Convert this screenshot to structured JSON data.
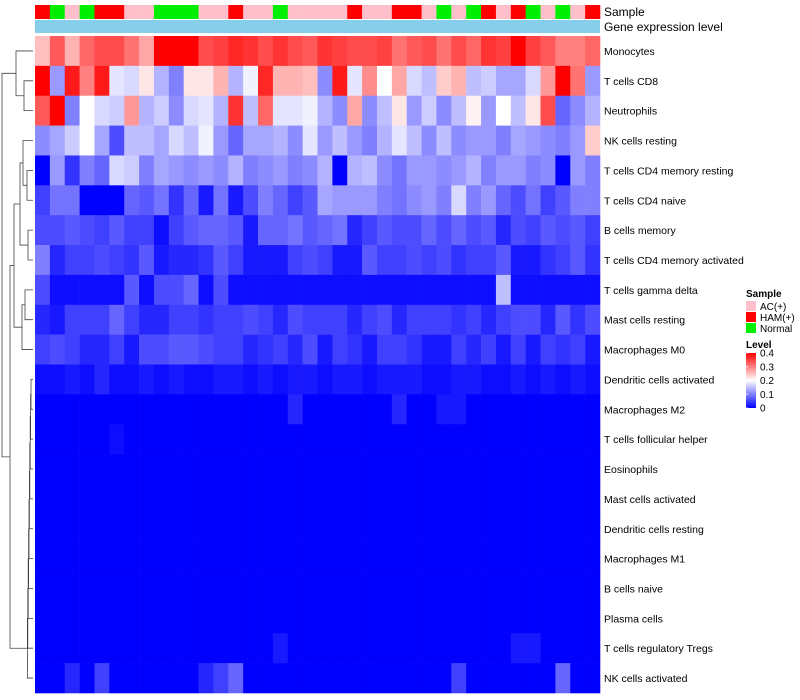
{
  "chart_data": {
    "type": "heatmap",
    "title": "",
    "xlabel": "",
    "ylabel": "",
    "column_annotation_labels": [
      "Sample",
      "Gene expression level"
    ],
    "column_samples": [
      "HAM(+)",
      "Normal",
      "AC(+)",
      "Normal",
      "HAM(+)",
      "HAM(+)",
      "AC(+)",
      "AC(+)",
      "Normal",
      "Normal",
      "Normal",
      "AC(+)",
      "AC(+)",
      "HAM(+)",
      "AC(+)",
      "AC(+)",
      "Normal",
      "AC(+)",
      "AC(+)",
      "AC(+)",
      "AC(+)",
      "HAM(+)",
      "AC(+)",
      "AC(+)",
      "HAM(+)",
      "HAM(+)",
      "AC(+)",
      "Normal",
      "AC(+)",
      "Normal",
      "HAM(+)",
      "AC(+)",
      "HAM(+)",
      "Normal",
      "AC(+)",
      "Normal",
      "AC(+)",
      "HAM(+)"
    ],
    "rows": [
      {
        "name": "Monocytes",
        "values": [
          0.25,
          0.33,
          0.26,
          0.32,
          0.34,
          0.34,
          0.31,
          0.27,
          0.4,
          0.4,
          0.4,
          0.34,
          0.35,
          0.37,
          0.36,
          0.34,
          0.36,
          0.34,
          0.33,
          0.36,
          0.35,
          0.34,
          0.34,
          0.35,
          0.31,
          0.33,
          0.34,
          0.31,
          0.34,
          0.32,
          0.36,
          0.35,
          0.4,
          0.35,
          0.33,
          0.3,
          0.3,
          0.32
        ]
      },
      {
        "name": "T cells CD8",
        "values": [
          0.4,
          0.12,
          0.38,
          0.3,
          0.38,
          0.18,
          0.17,
          0.22,
          0.14,
          0.1,
          0.22,
          0.22,
          0.26,
          0.14,
          0.19,
          0.37,
          0.26,
          0.26,
          0.25,
          0.11,
          0.38,
          0.18,
          0.29,
          0.2,
          0.27,
          0.17,
          0.15,
          0.24,
          0.26,
          0.15,
          0.16,
          0.13,
          0.13,
          0.17,
          0.28,
          0.4,
          0.31,
          0.12
        ]
      },
      {
        "name": "Neutrophils",
        "values": [
          0.33,
          0.4,
          0.1,
          0.2,
          0.17,
          0.16,
          0.28,
          0.14,
          0.16,
          0.11,
          0.17,
          0.18,
          0.14,
          0.36,
          0.15,
          0.32,
          0.18,
          0.18,
          0.19,
          0.14,
          0.11,
          0.27,
          0.11,
          0.15,
          0.22,
          0.12,
          0.16,
          0.11,
          0.15,
          0.21,
          0.12,
          0.2,
          0.15,
          0.22,
          0.34,
          0.08,
          0.11,
          0.14
        ]
      },
      {
        "name": "NK cells resting",
        "values": [
          0.11,
          0.13,
          0.16,
          0.2,
          0.13,
          0.06,
          0.15,
          0.15,
          0.13,
          0.17,
          0.15,
          0.19,
          0.12,
          0.08,
          0.13,
          0.13,
          0.14,
          0.11,
          0.18,
          0.12,
          0.15,
          0.12,
          0.1,
          0.14,
          0.18,
          0.15,
          0.11,
          0.15,
          0.11,
          0.12,
          0.12,
          0.1,
          0.13,
          0.12,
          0.11,
          0.1,
          0.12,
          0.24
        ]
      },
      {
        "name": "T cells CD4 memory resting",
        "values": [
          0.0,
          0.12,
          0.04,
          0.1,
          0.08,
          0.17,
          0.16,
          0.1,
          0.13,
          0.12,
          0.11,
          0.12,
          0.11,
          0.14,
          0.1,
          0.11,
          0.12,
          0.1,
          0.11,
          0.14,
          0.0,
          0.14,
          0.15,
          0.11,
          0.09,
          0.12,
          0.12,
          0.11,
          0.12,
          0.14,
          0.1,
          0.12,
          0.12,
          0.1,
          0.11,
          0.0,
          0.12,
          0.1
        ]
      },
      {
        "name": "T cells CD4 naive",
        "values": [
          0.05,
          0.09,
          0.09,
          0.0,
          0.0,
          0.0,
          0.08,
          0.07,
          0.09,
          0.04,
          0.08,
          0.02,
          0.09,
          0.02,
          0.06,
          0.1,
          0.08,
          0.05,
          0.07,
          0.13,
          0.12,
          0.12,
          0.12,
          0.1,
          0.09,
          0.11,
          0.12,
          0.1,
          0.17,
          0.1,
          0.12,
          0.08,
          0.06,
          0.09,
          0.05,
          0.07,
          0.1,
          0.1
        ]
      },
      {
        "name": "B cells memory",
        "values": [
          0.06,
          0.06,
          0.07,
          0.06,
          0.05,
          0.07,
          0.05,
          0.05,
          0.01,
          0.05,
          0.07,
          0.08,
          0.08,
          0.07,
          0.02,
          0.08,
          0.08,
          0.09,
          0.07,
          0.08,
          0.09,
          0.03,
          0.05,
          0.07,
          0.06,
          0.06,
          0.08,
          0.06,
          0.08,
          0.06,
          0.07,
          0.03,
          0.06,
          0.05,
          0.07,
          0.06,
          0.07,
          0.05
        ]
      },
      {
        "name": "T cells CD4 memory activated",
        "values": [
          0.1,
          0.03,
          0.05,
          0.05,
          0.06,
          0.05,
          0.04,
          0.07,
          0.02,
          0.03,
          0.03,
          0.04,
          0.07,
          0.05,
          0.02,
          0.02,
          0.02,
          0.05,
          0.06,
          0.05,
          0.02,
          0.02,
          0.07,
          0.05,
          0.05,
          0.06,
          0.05,
          0.06,
          0.04,
          0.05,
          0.05,
          0.07,
          0.02,
          0.02,
          0.04,
          0.05,
          0.07,
          0.04
        ]
      },
      {
        "name": "T cells gamma delta",
        "values": [
          0.06,
          0.01,
          0.01,
          0.01,
          0.01,
          0.01,
          0.07,
          0.01,
          0.06,
          0.06,
          0.08,
          0.01,
          0.06,
          0.01,
          0.01,
          0.01,
          0.01,
          0.01,
          0.01,
          0.01,
          0.01,
          0.01,
          0.01,
          0.01,
          0.01,
          0.01,
          0.01,
          0.01,
          0.01,
          0.01,
          0.01,
          0.15,
          0.01,
          0.01,
          0.01,
          0.01,
          0.01,
          0.01
        ]
      },
      {
        "name": "Mast cells resting",
        "values": [
          0.03,
          0.02,
          0.05,
          0.05,
          0.05,
          0.08,
          0.05,
          0.03,
          0.03,
          0.05,
          0.05,
          0.04,
          0.05,
          0.05,
          0.06,
          0.05,
          0.03,
          0.06,
          0.05,
          0.05,
          0.05,
          0.03,
          0.05,
          0.06,
          0.03,
          0.05,
          0.05,
          0.05,
          0.04,
          0.05,
          0.03,
          0.05,
          0.06,
          0.06,
          0.03,
          0.07,
          0.04,
          0.06
        ]
      },
      {
        "name": "Macrophages M0",
        "values": [
          0.05,
          0.06,
          0.05,
          0.03,
          0.03,
          0.05,
          0.02,
          0.06,
          0.06,
          0.07,
          0.07,
          0.06,
          0.05,
          0.05,
          0.03,
          0.04,
          0.05,
          0.03,
          0.06,
          0.02,
          0.05,
          0.04,
          0.02,
          0.05,
          0.05,
          0.04,
          0.02,
          0.02,
          0.05,
          0.03,
          0.05,
          0.02,
          0.05,
          0.02,
          0.05,
          0.04,
          0.05,
          0.02
        ]
      },
      {
        "name": "Dendritic cells activated",
        "values": [
          0.01,
          0.01,
          0.02,
          0.01,
          0.03,
          0.01,
          0.01,
          0.02,
          0.01,
          0.02,
          0.01,
          0.01,
          0.02,
          0.02,
          0.01,
          0.02,
          0.01,
          0.02,
          0.02,
          0.01,
          0.02,
          0.02,
          0.01,
          0.02,
          0.02,
          0.02,
          0.01,
          0.01,
          0.02,
          0.02,
          0.01,
          0.01,
          0.02,
          0.01,
          0.02,
          0.01,
          0.02,
          0.01
        ]
      },
      {
        "name": "Macrophages M2",
        "values": [
          0.0,
          0.0,
          0.0,
          0.0,
          0.0,
          0.0,
          0.0,
          0.0,
          0.0,
          0.0,
          0.0,
          0.0,
          0.0,
          0.0,
          0.0,
          0.0,
          0.0,
          0.03,
          0.0,
          0.0,
          0.0,
          0.0,
          0.0,
          0.0,
          0.03,
          0.0,
          0.0,
          0.02,
          0.02,
          0.0,
          0.0,
          0.0,
          0.0,
          0.0,
          0.0,
          0.0,
          0.0,
          0.0
        ]
      },
      {
        "name": "T cells follicular helper",
        "values": [
          0.0,
          0.0,
          0.0,
          0.0,
          0.0,
          0.01,
          0.0,
          0.0,
          0.0,
          0.0,
          0.0,
          0.0,
          0.0,
          0.0,
          0.0,
          0.0,
          0.0,
          0.0,
          0.0,
          0.0,
          0.0,
          0.0,
          0.0,
          0.0,
          0.0,
          0.0,
          0.0,
          0.0,
          0.0,
          0.0,
          0.0,
          0.0,
          0.0,
          0.0,
          0.0,
          0.0,
          0.0,
          0.0
        ]
      },
      {
        "name": "Eosinophils",
        "values": [
          0.0,
          0.0,
          0.0,
          0.0,
          0.0,
          0.0,
          0.0,
          0.0,
          0.0,
          0.0,
          0.0,
          0.0,
          0.0,
          0.0,
          0.0,
          0.0,
          0.0,
          0.0,
          0.0,
          0.0,
          0.0,
          0.0,
          0.0,
          0.0,
          0.0,
          0.0,
          0.0,
          0.0,
          0.0,
          0.0,
          0.0,
          0.0,
          0.0,
          0.0,
          0.0,
          0.0,
          0.0,
          0.0
        ]
      },
      {
        "name": "Mast cells activated",
        "values": [
          0.0,
          0.0,
          0.0,
          0.0,
          0.0,
          0.0,
          0.0,
          0.0,
          0.0,
          0.0,
          0.0,
          0.0,
          0.0,
          0.0,
          0.0,
          0.0,
          0.0,
          0.0,
          0.0,
          0.0,
          0.0,
          0.0,
          0.0,
          0.0,
          0.0,
          0.0,
          0.0,
          0.0,
          0.0,
          0.0,
          0.0,
          0.0,
          0.0,
          0.0,
          0.0,
          0.0,
          0.0,
          0.0
        ]
      },
      {
        "name": "Dendritic cells resting",
        "values": [
          0.0,
          0.0,
          0.0,
          0.0,
          0.0,
          0.0,
          0.0,
          0.0,
          0.0,
          0.0,
          0.0,
          0.0,
          0.0,
          0.0,
          0.0,
          0.0,
          0.0,
          0.0,
          0.0,
          0.0,
          0.0,
          0.0,
          0.0,
          0.0,
          0.0,
          0.0,
          0.0,
          0.0,
          0.0,
          0.0,
          0.0,
          0.0,
          0.0,
          0.0,
          0.0,
          0.0,
          0.0,
          0.0
        ]
      },
      {
        "name": "Macrophages M1",
        "values": [
          0.0,
          0.0,
          0.0,
          0.0,
          0.0,
          0.0,
          0.0,
          0.0,
          0.0,
          0.0,
          0.0,
          0.0,
          0.0,
          0.0,
          0.0,
          0.0,
          0.0,
          0.0,
          0.0,
          0.0,
          0.0,
          0.0,
          0.0,
          0.0,
          0.0,
          0.0,
          0.0,
          0.0,
          0.0,
          0.0,
          0.0,
          0.0,
          0.0,
          0.0,
          0.0,
          0.0,
          0.0,
          0.0
        ]
      },
      {
        "name": "B cells naive",
        "values": [
          0.0,
          0.0,
          0.0,
          0.0,
          0.0,
          0.0,
          0.0,
          0.0,
          0.0,
          0.0,
          0.0,
          0.0,
          0.0,
          0.0,
          0.0,
          0.0,
          0.0,
          0.0,
          0.0,
          0.0,
          0.0,
          0.0,
          0.0,
          0.0,
          0.0,
          0.0,
          0.0,
          0.0,
          0.0,
          0.0,
          0.0,
          0.0,
          0.0,
          0.0,
          0.0,
          0.0,
          0.0,
          0.0
        ]
      },
      {
        "name": "Plasma cells",
        "values": [
          0.0,
          0.0,
          0.0,
          0.0,
          0.0,
          0.0,
          0.0,
          0.0,
          0.0,
          0.0,
          0.0,
          0.0,
          0.0,
          0.0,
          0.0,
          0.0,
          0.0,
          0.0,
          0.0,
          0.0,
          0.0,
          0.0,
          0.0,
          0.0,
          0.0,
          0.0,
          0.0,
          0.0,
          0.0,
          0.0,
          0.0,
          0.0,
          0.0,
          0.0,
          0.0,
          0.0,
          0.0,
          0.0
        ]
      },
      {
        "name": "T cells regulatory  Tregs",
        "values": [
          0.0,
          0.0,
          0.0,
          0.0,
          0.0,
          0.0,
          0.0,
          0.0,
          0.0,
          0.0,
          0.0,
          0.0,
          0.0,
          0.0,
          0.0,
          0.0,
          0.02,
          0.0,
          0.0,
          0.0,
          0.0,
          0.0,
          0.0,
          0.0,
          0.0,
          0.0,
          0.0,
          0.0,
          0.0,
          0.0,
          0.0,
          0.0,
          0.02,
          0.02,
          0.0,
          0.0,
          0.0,
          0.0
        ]
      },
      {
        "name": "NK cells activated",
        "values": [
          0.0,
          0.0,
          0.03,
          0.0,
          0.05,
          0.0,
          0.0,
          0.0,
          0.0,
          0.0,
          0.0,
          0.03,
          0.05,
          0.08,
          0.0,
          0.0,
          0.0,
          0.0,
          0.0,
          0.0,
          0.0,
          0.0,
          0.0,
          0.0,
          0.0,
          0.0,
          0.0,
          0.0,
          0.05,
          0.0,
          0.0,
          0.0,
          0.0,
          0.0,
          0.0,
          0.08,
          0.0,
          0.0
        ]
      }
    ],
    "legend": {
      "sample_title": "Sample",
      "sample_entries": [
        {
          "label": "AC(+)",
          "color": "#ffc0cb"
        },
        {
          "label": "HAM(+)",
          "color": "#ff0000"
        },
        {
          "label": "Normal",
          "color": "#00ee00"
        }
      ],
      "level_title": "Level",
      "level_ticks": [
        "0.4",
        "0.3",
        "0.2",
        "0.1",
        "0"
      ],
      "level_range": [
        0,
        0.4
      ],
      "level_colors": [
        "#0000ff",
        "#ffffff",
        "#ff0000"
      ],
      "gene_expression_color": "#87ceeb"
    }
  }
}
